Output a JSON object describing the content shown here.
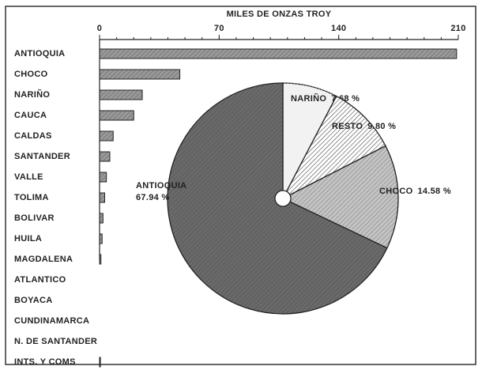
{
  "chart_data": [
    {
      "type": "bar",
      "orientation": "horizontal",
      "x_label": "MILES DE ONZAS TROY",
      "categories": [
        "ANTIOQUIA",
        "CHOCO",
        "NARIÑO",
        "CAUCA",
        "CALDAS",
        "SANTANDER",
        "VALLE",
        "TOLIMA",
        "BOLIVAR",
        "HUILA",
        "MAGDALENA",
        "ATLANTICO",
        "BOYACA",
        "CUNDINAMARCA",
        "N. DE SANTANDER",
        "INTS. Y COMS"
      ],
      "values": [
        209,
        47,
        25,
        20,
        8,
        6,
        4,
        3,
        2,
        1.5,
        0.8,
        0,
        0,
        0,
        0,
        0.5
      ],
      "color": "#999999",
      "xlim": [
        0,
        210
      ],
      "xticks": [
        0,
        70,
        140,
        210
      ]
    },
    {
      "type": "pie",
      "labels": [
        "NARIÑO",
        "RESTO",
        "CHOCO",
        "ANTIOQUIA"
      ],
      "values": [
        7.68,
        9.8,
        14.58,
        67.94
      ],
      "value_labels": [
        "7.68 %",
        "9.80 %",
        "14.58 %",
        "67.94 %"
      ],
      "colors": [
        "#f2f2f2",
        "#ffffff",
        "#c4c4c4",
        "#6a6a6a"
      ]
    }
  ]
}
